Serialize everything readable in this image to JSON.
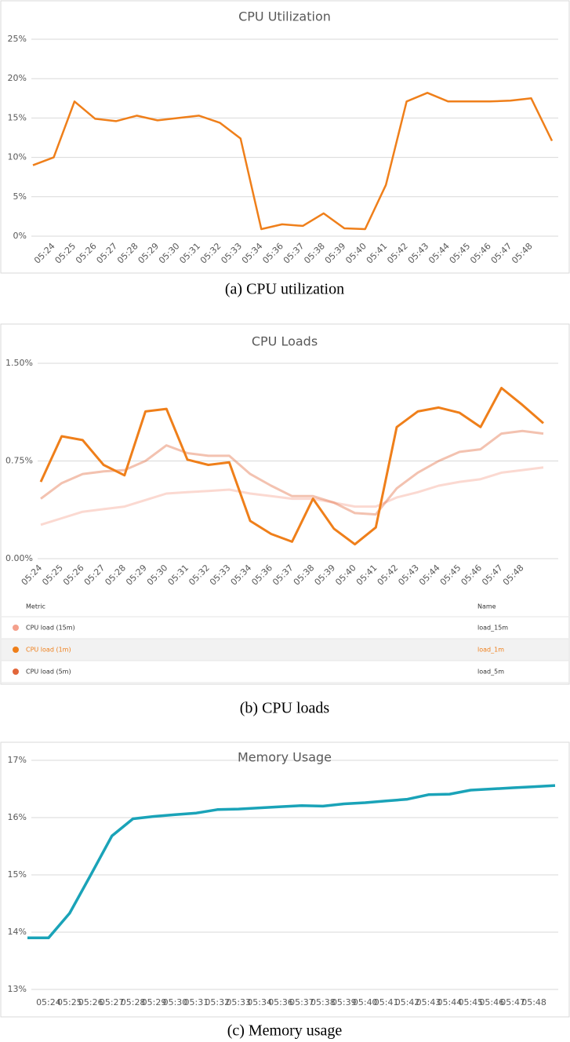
{
  "chart_data": [
    {
      "type": "line",
      "title": "CPU Utilization",
      "caption": "(a) CPU utilization",
      "categories": [
        null,
        "05:24",
        "05:25",
        "05:26",
        "05:27",
        "05:28",
        "05:29",
        "05:30",
        "05:31",
        "05:32",
        "05:33",
        "05:34",
        "05:36",
        "05:37",
        "05:38",
        "05:39",
        "05:40",
        "05:41",
        "05:42",
        "05:43",
        "05:44",
        "05:45",
        "05:46",
        "05:47",
        "05:48",
        null
      ],
      "series": [
        {
          "name": null,
          "color": "#ef7f1a",
          "values": [
            9.0,
            10.0,
            17.1,
            14.9,
            14.6,
            15.3,
            14.7,
            15.0,
            15.3,
            14.4,
            12.4,
            0.9,
            1.5,
            1.3,
            2.9,
            1.0,
            0.9,
            6.5,
            17.1,
            18.2,
            17.1,
            17.1,
            17.1,
            17.2,
            17.5,
            12.1
          ]
        }
      ],
      "ylim": [
        0,
        25
      ],
      "yticks": [
        {
          "value": 0,
          "label": "0%"
        },
        {
          "value": 5,
          "label": "5%"
        },
        {
          "value": 10,
          "label": "10%"
        },
        {
          "value": 15,
          "label": "15%"
        },
        {
          "value": 20,
          "label": "20%"
        },
        {
          "value": 25,
          "label": "25%"
        }
      ],
      "grid": true
    },
    {
      "type": "line",
      "title": "CPU Loads",
      "caption": "(b) CPU loads",
      "categories": [
        "05:24",
        "05:25",
        "05:26",
        "05:27",
        "05:28",
        "05:29",
        "05:30",
        "05:31",
        "05:32",
        "05:33",
        "05:34",
        "05:36",
        "05:37",
        "05:38",
        "05:39",
        "05:40",
        "05:41",
        "05:42",
        "05:43",
        "05:44",
        "05:45",
        "05:46",
        "05:47",
        "05:48",
        null
      ],
      "series": [
        {
          "name": "CPU load (15m)",
          "id": "load_15m",
          "color": "#f4a08c",
          "values": [
            0.26,
            0.31,
            0.36,
            0.38,
            0.4,
            0.45,
            0.5,
            0.51,
            0.52,
            0.53,
            0.5,
            0.48,
            0.46,
            0.46,
            0.43,
            0.4,
            0.4,
            0.47,
            0.51,
            0.56,
            0.59,
            0.61,
            0.66,
            0.68,
            0.7
          ]
        },
        {
          "name": "CPU load (1m)",
          "id": "load_1m",
          "color": "#ef7f1a",
          "values": [
            0.59,
            0.94,
            0.91,
            0.72,
            0.64,
            1.13,
            1.15,
            0.76,
            0.72,
            0.74,
            0.29,
            0.19,
            0.13,
            0.46,
            0.23,
            0.11,
            0.24,
            1.01,
            1.13,
            1.16,
            1.12,
            1.01,
            1.31,
            1.18,
            1.04
          ]
        },
        {
          "name": "CPU load (5m)",
          "id": "load_5m",
          "color": "#e2663a",
          "values": [
            0.46,
            0.58,
            0.65,
            0.67,
            0.68,
            0.75,
            0.87,
            0.81,
            0.79,
            0.79,
            0.65,
            0.56,
            0.48,
            0.48,
            0.43,
            0.35,
            0.34,
            0.54,
            0.66,
            0.75,
            0.82,
            0.84,
            0.96,
            0.98,
            0.96
          ]
        }
      ],
      "highlighted_series": 1,
      "legend_headers": [
        "Metric",
        "Name"
      ],
      "ylim": [
        0,
        1.5
      ],
      "yticks": [
        {
          "value": 0,
          "label": "0.00%"
        },
        {
          "value": 0.75,
          "label": "0.75%"
        },
        {
          "value": 1.5,
          "label": "1.50%"
        }
      ],
      "grid": true
    },
    {
      "type": "line",
      "title": "Memory Usage",
      "caption": "(c) Memory usage",
      "categories": [
        null,
        "05:24",
        "05:25",
        "05:26",
        "05:27",
        "05:28",
        "05:29",
        "05:30",
        "05:31",
        "05:32",
        "05:33",
        "05:34",
        "05:36",
        "05:37",
        "05:38",
        "05:39",
        "05:40",
        "05:41",
        "05:42",
        "05:43",
        "05:44",
        "05:45",
        "05:46",
        "05:47",
        "05:48",
        null
      ],
      "series": [
        {
          "name": null,
          "color": "#1aa3b8",
          "values": [
            13.9,
            13.9,
            14.33,
            15.0,
            15.68,
            15.98,
            16.02,
            16.05,
            16.08,
            16.14,
            16.15,
            16.17,
            16.19,
            16.21,
            16.2,
            16.24,
            16.26,
            16.29,
            16.32,
            16.4,
            16.41,
            16.48,
            16.5,
            16.52,
            16.54,
            16.56
          ]
        }
      ],
      "ylim": [
        13,
        17
      ],
      "yticks": [
        {
          "value": 13,
          "label": "13%"
        },
        {
          "value": 14,
          "label": "14%"
        },
        {
          "value": 15,
          "label": "15%"
        },
        {
          "value": 16,
          "label": "16%"
        },
        {
          "value": 17,
          "label": "17%"
        }
      ],
      "grid": true
    }
  ]
}
